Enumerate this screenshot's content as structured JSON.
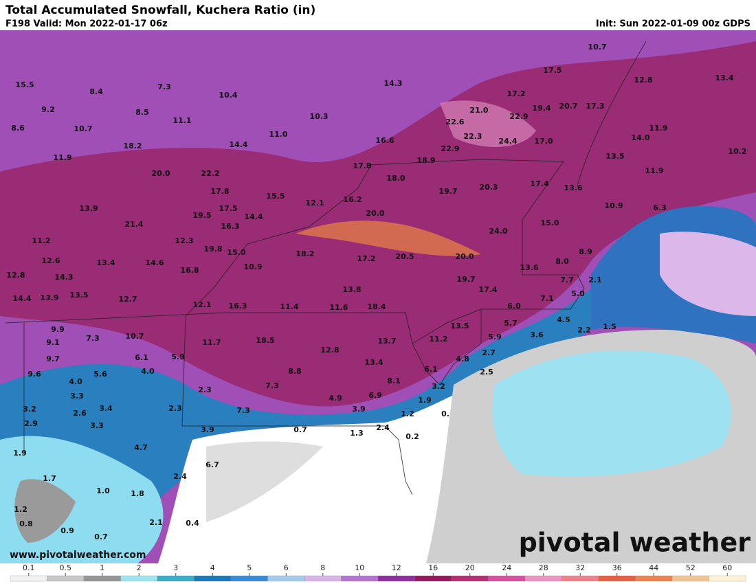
{
  "header": {
    "title": "Total Accumulated Snowfall, Kuchera Ratio (in)",
    "valid": "F198 Valid: Mon 2022-01-17 06z",
    "init": "Init: Sun 2022-01-09 00z GDPS"
  },
  "labels": [
    "15.5",
    "8.4",
    "7.3",
    "10.4",
    "14.3",
    "17.5",
    "10.7",
    "12.8",
    "13.4",
    "9.2",
    "8.6",
    "8.5",
    "11.1",
    "10.3",
    "17.2",
    "21.0",
    "19.4",
    "20.7",
    "17.3",
    "10.7",
    "18.2",
    "14.4",
    "11.0",
    "22.6",
    "22.9",
    "22.3",
    "24.4",
    "17.0",
    "14.0",
    "11.9",
    "11.9",
    "16.6",
    "22.9",
    "13.5",
    "10.2",
    "20.0",
    "22.2",
    "17.8",
    "18.9",
    "18.0",
    "11.9",
    "17.8",
    "15.5",
    "19.7",
    "20.3",
    "17.4",
    "13.6",
    "12.1",
    "16.2",
    "17.5",
    "20.0",
    "10.9",
    "6.3",
    "13.9",
    "19.5",
    "14.4",
    "16.3",
    "15.0",
    "21.4",
    "24.0",
    "11.2",
    "12.3",
    "19.8",
    "15.0",
    "18.2",
    "17.2",
    "20.5",
    "20.0",
    "8.0",
    "8.9",
    "12.6",
    "13.4",
    "14.6",
    "16.8",
    "10.9",
    "13.6",
    "12.8",
    "14.3",
    "19.7",
    "7.7",
    "2.1",
    "14.4",
    "13.9",
    "13.5",
    "12.7",
    "13.8",
    "17.4",
    "7.1",
    "5.0",
    "12.1",
    "16.3",
    "11.4",
    "11.6",
    "18.4",
    "6.0",
    "5.7",
    "4.5",
    "13.5",
    "9.9",
    "7.3",
    "10.7",
    "5.9",
    "3.6",
    "2.2",
    "1.5",
    "9.1",
    "11.7",
    "18.5",
    "13.7",
    "11.2",
    "9.7",
    "6.1",
    "5.9",
    "12.8",
    "2.7",
    "4.8",
    "9.6",
    "5.6",
    "4.0",
    "13.4",
    "6.1",
    "2.5",
    "4.0",
    "8.8",
    "8.1",
    "3.3",
    "2.3",
    "7.3",
    "3.2",
    "4.9",
    "6.9",
    "1.9",
    "3.2",
    "2.6",
    "3.4",
    "2.3",
    "7.3",
    "3.9",
    "1.2",
    "0.",
    "2.9",
    "3.3",
    "3.9",
    "0.7",
    "2.4",
    "1.3",
    "0.2",
    "1.9",
    "4.7",
    "6.7",
    "1.7",
    "2.4",
    "1.0",
    "1.8",
    "1.2",
    "0.8",
    "2.1",
    "0.4",
    "0.9",
    "0.7"
  ],
  "colorbar": {
    "ticks": [
      0.1,
      0.5,
      1,
      2,
      3,
      4,
      5,
      6,
      8,
      10,
      12,
      16,
      20,
      24,
      28,
      32,
      36,
      44,
      52,
      60
    ],
    "colors": [
      "#f2f2f2",
      "#c8c8c8",
      "#969696",
      "#9ee4f2",
      "#40aacb",
      "#1f78b4",
      "#3d8ad2",
      "#a6cceb",
      "#d8b4ea",
      "#b474d4",
      "#8e2e9e",
      "#8e1c5e",
      "#b03272",
      "#d054a2",
      "#ea94c2",
      "#e8848c",
      "#e06444",
      "#e88652",
      "#f2c494",
      "#fff2d6"
    ]
  },
  "branding": {
    "url": "www.pivotalweather.com",
    "logo": "pivotal weather"
  }
}
